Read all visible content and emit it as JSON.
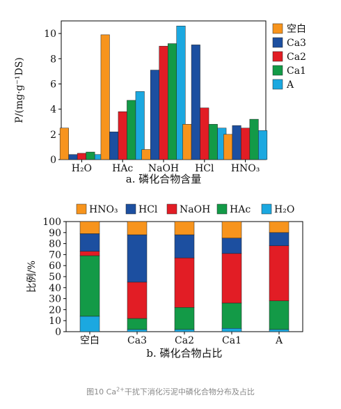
{
  "chart_data": [
    {
      "type": "bar",
      "title": "a. 磷化合物含量",
      "xlabel": "",
      "ylabel": "P/(mg·g⁻¹DS)",
      "ylim": [
        0,
        11
      ],
      "yticks": [
        0,
        2,
        4,
        6,
        8,
        10
      ],
      "categories": [
        "H₂O",
        "HAc",
        "NaOH",
        "HCl",
        "HNO₃"
      ],
      "series": [
        {
          "name": "空白",
          "color": "#f7941d",
          "values": [
            2.5,
            9.9,
            0.8,
            2.8,
            2.0
          ]
        },
        {
          "name": "Ca3",
          "color": "#1c4fa0",
          "values": [
            0.4,
            2.2,
            7.1,
            9.1,
            2.7
          ]
        },
        {
          "name": "Ca2",
          "color": "#e21d25",
          "values": [
            0.5,
            3.8,
            9.0,
            4.1,
            2.5
          ]
        },
        {
          "name": "Ca1",
          "color": "#139a47",
          "values": [
            0.6,
            4.7,
            9.2,
            2.8,
            3.2
          ]
        },
        {
          "name": "A",
          "color": "#1ba8e0",
          "values": [
            0.4,
            5.4,
            10.6,
            2.5,
            2.3
          ]
        }
      ],
      "legend": "right",
      "grid": false
    },
    {
      "type": "stacked-bar",
      "title": "b. 磷化合物占比",
      "xlabel": "",
      "ylabel": "比例/%",
      "ylim": [
        0,
        100
      ],
      "yticks": [
        0,
        10,
        20,
        30,
        40,
        50,
        60,
        70,
        80,
        90,
        100
      ],
      "categories": [
        "空白",
        "Ca3",
        "Ca2",
        "Ca1",
        "A"
      ],
      "series": [
        {
          "name": "H₂O",
          "color": "#1ba8e0",
          "values": [
            14,
            2,
            2,
            3,
            2
          ]
        },
        {
          "name": "HAc",
          "color": "#139a47",
          "values": [
            55,
            10,
            20,
            23,
            26
          ]
        },
        {
          "name": "NaOH",
          "color": "#e21d25",
          "values": [
            4,
            33,
            45,
            45,
            50
          ]
        },
        {
          "name": "HCl",
          "color": "#1c4fa0",
          "values": [
            16,
            43,
            21,
            14,
            12
          ]
        },
        {
          "name": "HNO₃",
          "color": "#f7941d",
          "values": [
            11,
            12,
            12,
            15,
            10
          ]
        }
      ],
      "legend_order": [
        "HNO₃",
        "HCl",
        "NaOH",
        "HAc",
        "H₂O"
      ],
      "legend": "top",
      "grid": false
    }
  ],
  "caption": {
    "prefix": "图10 Ca",
    "superscript": "2+",
    "suffix": "干扰下消化污泥中磷化合物分布及占比"
  }
}
